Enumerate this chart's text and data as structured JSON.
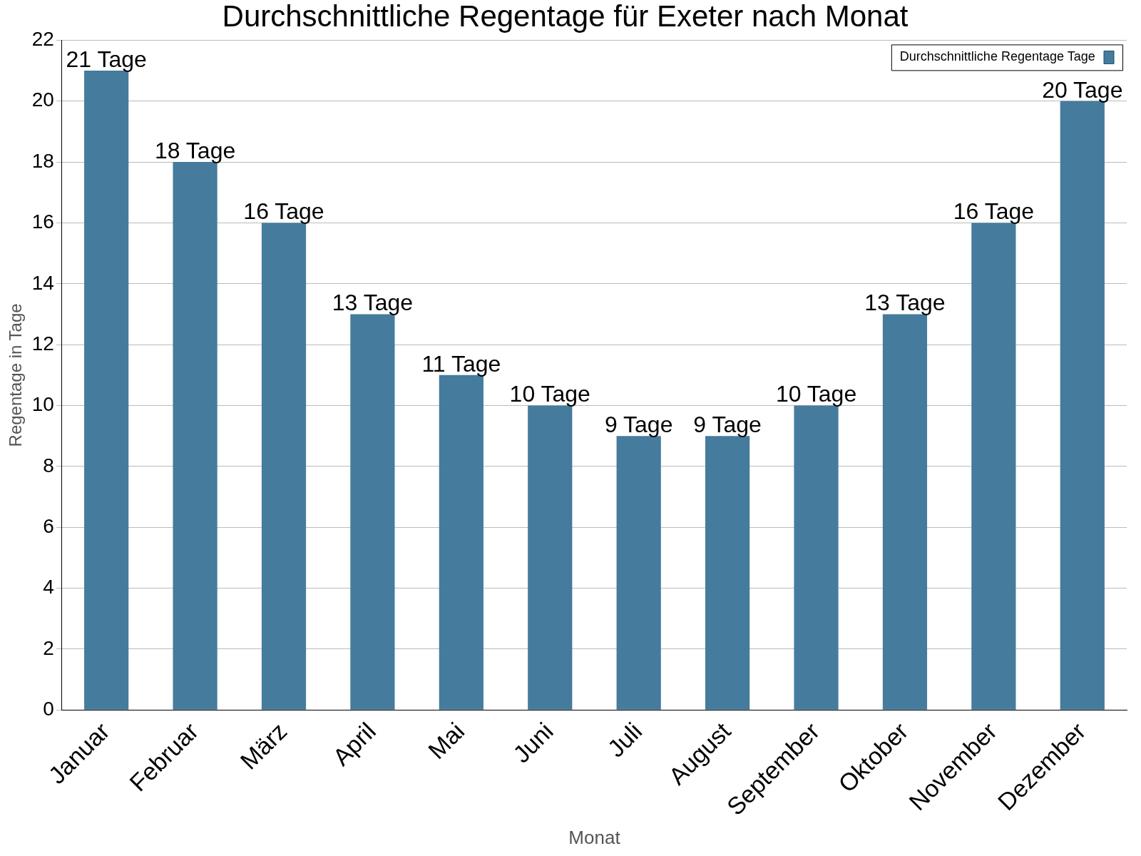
{
  "chart_data": {
    "type": "bar",
    "title": "Durchschnittliche Regentage für Exeter nach Monat",
    "xlabel": "Monat",
    "ylabel": "Regentage in Tage",
    "categories": [
      "Januar",
      "Februar",
      "März",
      "April",
      "Mai",
      "Juni",
      "Juli",
      "August",
      "September",
      "Oktober",
      "November",
      "Dezember"
    ],
    "series": [
      {
        "name": "Durchschnittliche Regentage Tage",
        "color": "#457b9d",
        "values": [
          21,
          18,
          16,
          13,
          11,
          10,
          9,
          9,
          10,
          13,
          16,
          20
        ],
        "value_labels": [
          "21 Tage",
          "18 Tage",
          "16 Tage",
          "13 Tage",
          "11 Tage",
          "10 Tage",
          "9 Tage",
          "9 Tage",
          "10 Tage",
          "13 Tage",
          "16 Tage",
          "20 Tage"
        ]
      }
    ],
    "ylim": [
      0,
      22
    ],
    "yticks": [
      0,
      2,
      4,
      6,
      8,
      10,
      12,
      14,
      16,
      18,
      20,
      22
    ],
    "grid": "y",
    "legend": "top right"
  }
}
